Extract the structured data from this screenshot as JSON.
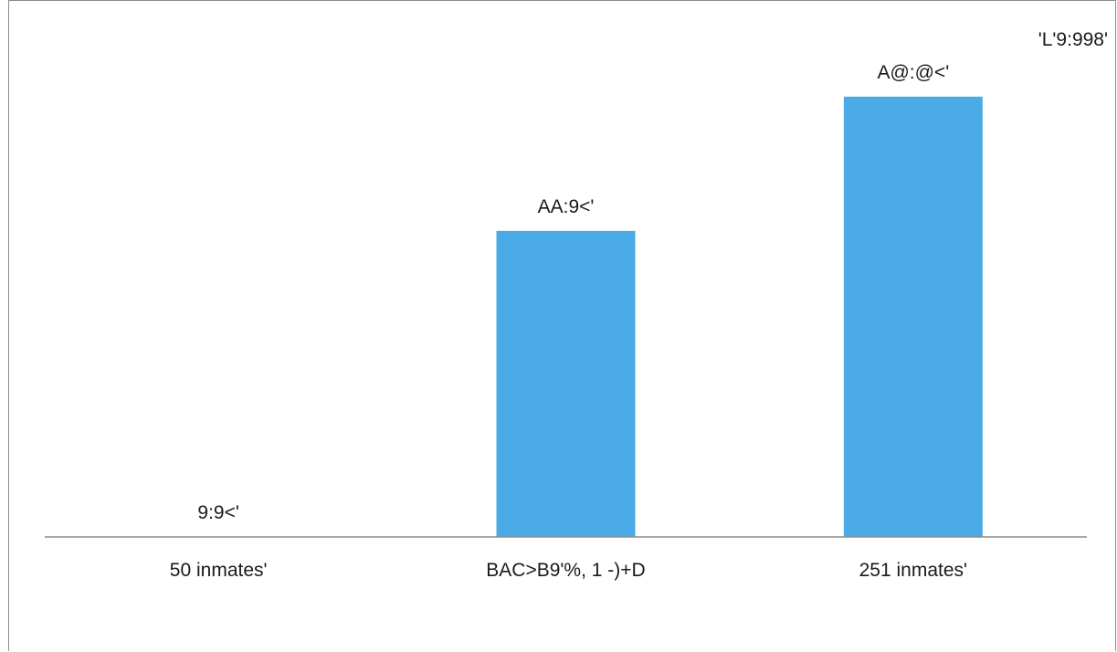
{
  "chart_data": {
    "type": "bar",
    "title": "",
    "xlabel": "",
    "ylabel": "",
    "corner_label": "'L'9:998'",
    "categories": [
      "50 inmates'",
      "BAC>B9'%, 1 -)+D",
      "251 inmates'"
    ],
    "values": [
      0,
      57,
      82
    ],
    "data_labels": [
      "9:9<'",
      "AA:9<'",
      "A@:@<'"
    ],
    "ylim": [
      0,
      100
    ],
    "grid": false,
    "legend": "none",
    "bar_color": "#4aabe6",
    "axis_color": "#8c8c8c"
  }
}
